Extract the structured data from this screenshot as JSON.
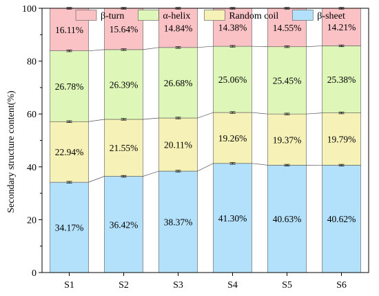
{
  "chart_data": {
    "type": "bar",
    "stacked": true,
    "categories": [
      "S1",
      "S2",
      "S3",
      "S4",
      "S5",
      "S6"
    ],
    "series": [
      {
        "name": "β-sheet",
        "color": "#b3e0fa",
        "values": [
          34.17,
          36.42,
          38.37,
          41.3,
          40.63,
          40.62
        ],
        "labels": [
          "34.17%",
          "36.42%",
          "38.37%",
          "41.30%",
          "40.63%",
          "40.62%"
        ]
      },
      {
        "name": "Random coil",
        "color": "#f6f1b7",
        "values": [
          22.94,
          21.55,
          20.11,
          19.26,
          19.37,
          19.79
        ],
        "labels": [
          "22.94%",
          "21.55%",
          "20.11%",
          "19.26%",
          "19.37%",
          "19.79%"
        ]
      },
      {
        "name": "α-helix",
        "color": "#def6b8",
        "values": [
          26.78,
          26.39,
          26.68,
          25.06,
          25.45,
          25.38
        ],
        "labels": [
          "26.78%",
          "26.39%",
          "26.68%",
          "25.06%",
          "25.45%",
          "25.38%"
        ]
      },
      {
        "name": "β-turn",
        "color": "#fbc2c6",
        "values": [
          16.11,
          15.64,
          14.84,
          14.38,
          14.55,
          14.21
        ],
        "labels": [
          "16.11%",
          "15.64%",
          "14.84%",
          "14.38%",
          "14.55%",
          "14.21%"
        ]
      }
    ],
    "legend_order": [
      "β-turn",
      "α-helix",
      "Random coil",
      "β-sheet"
    ],
    "xlabel": "",
    "ylabel": "Secondary structure content(%)",
    "ylim": [
      0,
      100
    ],
    "yticks": [
      0,
      20,
      40,
      60,
      80,
      100
    ],
    "grid": false,
    "legend_position": "top",
    "error_bars": true,
    "connector_lines": true
  }
}
